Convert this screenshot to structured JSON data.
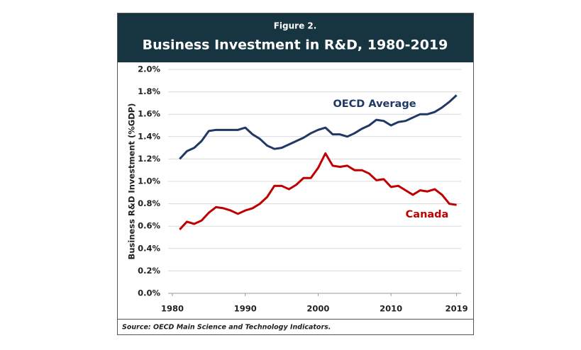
{
  "chart_data": {
    "type": "line",
    "header": "Figure 2.",
    "title": "Business Investment in R&D, 1980-2019",
    "y_label": "Business R&D Investment (%GDP)",
    "source": "Source: OECD Main Science and Technology Indicators.",
    "x": [
      1981,
      1982,
      1983,
      1984,
      1985,
      1986,
      1987,
      1988,
      1989,
      1990,
      1991,
      1992,
      1993,
      1994,
      1995,
      1996,
      1997,
      1998,
      1999,
      2000,
      2001,
      2002,
      2003,
      2004,
      2005,
      2006,
      2007,
      2008,
      2009,
      2010,
      2011,
      2012,
      2013,
      2014,
      2015,
      2016,
      2017,
      2018,
      2019
    ],
    "series": [
      {
        "name": "OECD Average",
        "color": "#1f3864",
        "values": [
          1.2,
          1.27,
          1.3,
          1.36,
          1.45,
          1.46,
          1.46,
          1.46,
          1.46,
          1.48,
          1.42,
          1.38,
          1.32,
          1.29,
          1.3,
          1.33,
          1.36,
          1.39,
          1.43,
          1.46,
          1.48,
          1.42,
          1.42,
          1.4,
          1.43,
          1.47,
          1.5,
          1.55,
          1.54,
          1.5,
          1.53,
          1.54,
          1.57,
          1.6,
          1.6,
          1.62,
          1.66,
          1.71,
          1.77
        ]
      },
      {
        "name": "Canada",
        "color": "#c00000",
        "values": [
          0.57,
          0.64,
          0.62,
          0.65,
          0.72,
          0.77,
          0.76,
          0.74,
          0.71,
          0.74,
          0.76,
          0.8,
          0.86,
          0.96,
          0.96,
          0.93,
          0.97,
          1.03,
          1.03,
          1.12,
          1.25,
          1.14,
          1.13,
          1.14,
          1.1,
          1.1,
          1.07,
          1.01,
          1.02,
          0.95,
          0.96,
          0.92,
          0.88,
          0.92,
          0.91,
          0.93,
          0.88,
          0.8,
          0.79
        ]
      }
    ],
    "xlim": [
      1979,
      2020
    ],
    "xticks": [
      1980,
      1990,
      2000,
      2010,
      2019
    ],
    "ylim": [
      0,
      2.0
    ],
    "yticks": [
      {
        "value": 0,
        "label": "0.0%"
      },
      {
        "value": 0.2,
        "label": "0.2%"
      },
      {
        "value": 0.4,
        "label": "0.4%"
      },
      {
        "value": 0.6,
        "label": "0.6%"
      },
      {
        "value": 0.8,
        "label": "0.8%"
      },
      {
        "value": 1.0,
        "label": "1.0%"
      },
      {
        "value": 1.2,
        "label": "1.2%"
      },
      {
        "value": 1.4,
        "label": "1.4%"
      },
      {
        "value": 1.6,
        "label": "1.6%"
      },
      {
        "value": 1.8,
        "label": "1.8%"
      },
      {
        "value": 2.0,
        "label": "2.0%"
      }
    ],
    "grid": true
  }
}
